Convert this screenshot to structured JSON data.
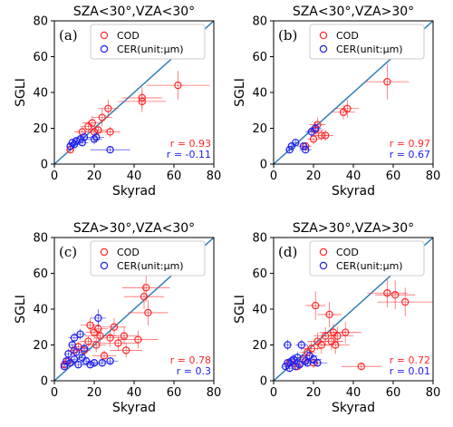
{
  "colors": {
    "cod": "#ff2a2a",
    "cer": "#2020ee",
    "oneToOne": "#2f80b8"
  },
  "chart_data": [
    {
      "type": "scatter",
      "panel_label": "(a)",
      "title": "SZA<30°,VZA<30°",
      "xlabel": "Skyrad",
      "ylabel": "SGLI",
      "xlim": [
        0,
        80
      ],
      "ylim": [
        0,
        80
      ],
      "xticks": [
        "0",
        "20",
        "40",
        "60",
        "80"
      ],
      "yticks": [
        "0",
        "20",
        "40",
        "60",
        "80"
      ],
      "grid": false,
      "legend_position": "top",
      "one_to_one_line": true,
      "series": [
        {
          "name": "COD",
          "color": "#ff2a2a",
          "points": [
            {
              "x": 8,
              "y": 8,
              "xerr": 2,
              "yerr": 2
            },
            {
              "x": 14,
              "y": 18,
              "xerr": 4,
              "yerr": 3
            },
            {
              "x": 17,
              "y": 21,
              "xerr": 4,
              "yerr": 3
            },
            {
              "x": 19,
              "y": 23,
              "xerr": 5,
              "yerr": 4
            },
            {
              "x": 20,
              "y": 18,
              "xerr": 4,
              "yerr": 3
            },
            {
              "x": 22,
              "y": 19,
              "xerr": 5,
              "yerr": 3
            },
            {
              "x": 24,
              "y": 26,
              "xerr": 5,
              "yerr": 5
            },
            {
              "x": 27,
              "y": 31,
              "xerr": 5,
              "yerr": 5
            },
            {
              "x": 28,
              "y": 18,
              "xerr": 5,
              "yerr": 3
            },
            {
              "x": 44,
              "y": 35,
              "xerr": 12,
              "yerr": 6
            },
            {
              "x": 44,
              "y": 37,
              "xerr": 10,
              "yerr": 6
            },
            {
              "x": 62,
              "y": 44,
              "xerr": 16,
              "yerr": 8
            }
          ]
        },
        {
          "name": "CER(unit:μm)",
          "color": "#2020ee",
          "points": [
            {
              "x": 8,
              "y": 10,
              "xerr": 2,
              "yerr": 2
            },
            {
              "x": 9,
              "y": 12,
              "xerr": 2,
              "yerr": 2
            },
            {
              "x": 10,
              "y": 11,
              "xerr": 3,
              "yerr": 2
            },
            {
              "x": 11,
              "y": 13,
              "xerr": 2,
              "yerr": 2
            },
            {
              "x": 13,
              "y": 14,
              "xerr": 3,
              "yerr": 3
            },
            {
              "x": 14,
              "y": 12,
              "xerr": 3,
              "yerr": 2
            },
            {
              "x": 15,
              "y": 15,
              "xerr": 3,
              "yerr": 3
            },
            {
              "x": 20,
              "y": 14,
              "xerr": 4,
              "yerr": 3
            },
            {
              "x": 21,
              "y": 15,
              "xerr": 4,
              "yerr": 3
            },
            {
              "x": 28,
              "y": 8,
              "xerr": 10,
              "yerr": 2
            }
          ]
        }
      ],
      "annotations": [
        {
          "text": "r = 0.93",
          "color": "#ff2a2a"
        },
        {
          "text": "r = -0.11",
          "color": "#2020ee"
        }
      ]
    },
    {
      "type": "scatter",
      "panel_label": "(b)",
      "title": "SZA<30°,VZA>30°",
      "xlabel": "Skyrad",
      "ylabel": "SGLI",
      "xlim": [
        0,
        80
      ],
      "ylim": [
        0,
        80
      ],
      "xticks": [
        "0",
        "20",
        "40",
        "60",
        "80"
      ],
      "yticks": [
        "0",
        "20",
        "40",
        "60",
        "80"
      ],
      "grid": false,
      "legend_position": "top",
      "one_to_one_line": true,
      "series": [
        {
          "name": "COD",
          "color": "#ff2a2a",
          "points": [
            {
              "x": 16,
              "y": 10,
              "xerr": 3,
              "yerr": 2
            },
            {
              "x": 20,
              "y": 14,
              "xerr": 3,
              "yerr": 3
            },
            {
              "x": 21,
              "y": 19,
              "xerr": 4,
              "yerr": 4
            },
            {
              "x": 22,
              "y": 22,
              "xerr": 4,
              "yerr": 4
            },
            {
              "x": 24,
              "y": 16,
              "xerr": 4,
              "yerr": 3
            },
            {
              "x": 26,
              "y": 16,
              "xerr": 4,
              "yerr": 3
            },
            {
              "x": 35,
              "y": 29,
              "xerr": 6,
              "yerr": 4
            },
            {
              "x": 37,
              "y": 31,
              "xerr": 6,
              "yerr": 5
            },
            {
              "x": 57,
              "y": 46,
              "xerr": 11,
              "yerr": 10
            }
          ]
        },
        {
          "name": "CER(unit:μm)",
          "color": "#2020ee",
          "points": [
            {
              "x": 8,
              "y": 8,
              "xerr": 2,
              "yerr": 2
            },
            {
              "x": 9,
              "y": 10,
              "xerr": 2,
              "yerr": 2
            },
            {
              "x": 11,
              "y": 12,
              "xerr": 2,
              "yerr": 2
            },
            {
              "x": 15,
              "y": 10,
              "xerr": 3,
              "yerr": 2
            },
            {
              "x": 16,
              "y": 8,
              "xerr": 3,
              "yerr": 2
            },
            {
              "x": 19,
              "y": 18,
              "xerr": 3,
              "yerr": 3
            },
            {
              "x": 21,
              "y": 20,
              "xerr": 3,
              "yerr": 3
            }
          ]
        }
      ],
      "annotations": [
        {
          "text": "r = 0.97",
          "color": "#ff2a2a"
        },
        {
          "text": "r = 0.67",
          "color": "#2020ee"
        }
      ]
    },
    {
      "type": "scatter",
      "panel_label": "(c)",
      "title": "SZA>30°,VZA<30°",
      "xlabel": "Skyrad",
      "ylabel": "SGLI",
      "xlim": [
        0,
        80
      ],
      "ylim": [
        0,
        80
      ],
      "xticks": [
        "0",
        "20",
        "40",
        "60",
        "80"
      ],
      "yticks": [
        "0",
        "20",
        "40",
        "60",
        "80"
      ],
      "grid": false,
      "legend_position": "top",
      "one_to_one_line": true,
      "series": [
        {
          "name": "COD",
          "color": "#ff2a2a",
          "points": [
            {
              "x": 5,
              "y": 9,
              "xerr": 2,
              "yerr": 2
            },
            {
              "x": 7,
              "y": 11,
              "xerr": 2,
              "yerr": 2
            },
            {
              "x": 10,
              "y": 17,
              "xerr": 3,
              "yerr": 3
            },
            {
              "x": 12,
              "y": 19,
              "xerr": 3,
              "yerr": 3
            },
            {
              "x": 15,
              "y": 17,
              "xerr": 3,
              "yerr": 3
            },
            {
              "x": 17,
              "y": 22,
              "xerr": 4,
              "yerr": 3
            },
            {
              "x": 18,
              "y": 31,
              "xerr": 5,
              "yerr": 4
            },
            {
              "x": 20,
              "y": 27,
              "xerr": 4,
              "yerr": 4
            },
            {
              "x": 21,
              "y": 20,
              "xerr": 5,
              "yerr": 4
            },
            {
              "x": 22,
              "y": 29,
              "xerr": 5,
              "yerr": 4
            },
            {
              "x": 23,
              "y": 25,
              "xerr": 8,
              "yerr": 4
            },
            {
              "x": 25,
              "y": 14,
              "xerr": 6,
              "yerr": 3
            },
            {
              "x": 28,
              "y": 24,
              "xerr": 8,
              "yerr": 5
            },
            {
              "x": 30,
              "y": 30,
              "xerr": 6,
              "yerr": 5
            },
            {
              "x": 32,
              "y": 21,
              "xerr": 10,
              "yerr": 4
            },
            {
              "x": 35,
              "y": 25,
              "xerr": 7,
              "yerr": 5
            },
            {
              "x": 36,
              "y": 17,
              "xerr": 8,
              "yerr": 4
            },
            {
              "x": 42,
              "y": 23,
              "xerr": 10,
              "yerr": 5
            },
            {
              "x": 45,
              "y": 47,
              "xerr": 10,
              "yerr": 7
            },
            {
              "x": 46,
              "y": 52,
              "xerr": 12,
              "yerr": 8
            },
            {
              "x": 47,
              "y": 38,
              "xerr": 10,
              "yerr": 7
            }
          ]
        },
        {
          "name": "CER(unit:μm)",
          "color": "#2020ee",
          "points": [
            {
              "x": 5,
              "y": 8,
              "xerr": 2,
              "yerr": 2
            },
            {
              "x": 6,
              "y": 11,
              "xerr": 2,
              "yerr": 2
            },
            {
              "x": 7,
              "y": 15,
              "xerr": 2,
              "yerr": 3
            },
            {
              "x": 8,
              "y": 10,
              "xerr": 2,
              "yerr": 2
            },
            {
              "x": 9,
              "y": 20,
              "xerr": 2,
              "yerr": 3
            },
            {
              "x": 10,
              "y": 12,
              "xerr": 2,
              "yerr": 2
            },
            {
              "x": 10,
              "y": 24,
              "xerr": 3,
              "yerr": 3
            },
            {
              "x": 11,
              "y": 16,
              "xerr": 3,
              "yerr": 3
            },
            {
              "x": 12,
              "y": 9,
              "xerr": 3,
              "yerr": 2
            },
            {
              "x": 13,
              "y": 26,
              "xerr": 3,
              "yerr": 3
            },
            {
              "x": 14,
              "y": 13,
              "xerr": 3,
              "yerr": 3
            },
            {
              "x": 15,
              "y": 18,
              "xerr": 3,
              "yerr": 3
            },
            {
              "x": 16,
              "y": 11,
              "xerr": 3,
              "yerr": 2
            },
            {
              "x": 18,
              "y": 9,
              "xerr": 4,
              "yerr": 2
            },
            {
              "x": 20,
              "y": 10,
              "xerr": 4,
              "yerr": 2
            },
            {
              "x": 22,
              "y": 35,
              "xerr": 4,
              "yerr": 5
            },
            {
              "x": 24,
              "y": 10,
              "xerr": 5,
              "yerr": 2
            },
            {
              "x": 28,
              "y": 11,
              "xerr": 4,
              "yerr": 2
            }
          ]
        }
      ],
      "annotations": [
        {
          "text": "r = 0.78",
          "color": "#ff2a2a"
        },
        {
          "text": "r = 0.3",
          "color": "#2020ee"
        }
      ]
    },
    {
      "type": "scatter",
      "panel_label": "(d)",
      "title": "SZA>30°,VZA>30°",
      "xlabel": "Skyrad",
      "ylabel": "SGLI",
      "xlim": [
        0,
        80
      ],
      "ylim": [
        0,
        80
      ],
      "xticks": [
        "0",
        "20",
        "40",
        "60",
        "80"
      ],
      "yticks": [
        "0",
        "20",
        "40",
        "60",
        "80"
      ],
      "grid": false,
      "legend_position": "top",
      "one_to_one_line": true,
      "series": [
        {
          "name": "COD",
          "color": "#ff2a2a",
          "points": [
            {
              "x": 8,
              "y": 10,
              "xerr": 2,
              "yerr": 2
            },
            {
              "x": 12,
              "y": 8,
              "xerr": 3,
              "yerr": 2
            },
            {
              "x": 15,
              "y": 12,
              "xerr": 3,
              "yerr": 3
            },
            {
              "x": 17,
              "y": 16,
              "xerr": 4,
              "yerr": 4
            },
            {
              "x": 19,
              "y": 18,
              "xerr": 5,
              "yerr": 4
            },
            {
              "x": 20,
              "y": 10,
              "xerr": 4,
              "yerr": 3
            },
            {
              "x": 21,
              "y": 42,
              "xerr": 5,
              "yerr": 8
            },
            {
              "x": 22,
              "y": 22,
              "xerr": 5,
              "yerr": 5
            },
            {
              "x": 24,
              "y": 20,
              "xerr": 6,
              "yerr": 5
            },
            {
              "x": 26,
              "y": 25,
              "xerr": 6,
              "yerr": 5
            },
            {
              "x": 28,
              "y": 37,
              "xerr": 6,
              "yerr": 7
            },
            {
              "x": 29,
              "y": 22,
              "xerr": 6,
              "yerr": 5
            },
            {
              "x": 30,
              "y": 27,
              "xerr": 7,
              "yerr": 5
            },
            {
              "x": 31,
              "y": 20,
              "xerr": 7,
              "yerr": 5
            },
            {
              "x": 32,
              "y": 25,
              "xerr": 8,
              "yerr": 5
            },
            {
              "x": 36,
              "y": 27,
              "xerr": 8,
              "yerr": 6
            },
            {
              "x": 44,
              "y": 8,
              "xerr": 10,
              "yerr": 2
            },
            {
              "x": 57,
              "y": 49,
              "xerr": 10,
              "yerr": 8
            },
            {
              "x": 61,
              "y": 48,
              "xerr": 10,
              "yerr": 8
            },
            {
              "x": 66,
              "y": 44,
              "xerr": 14,
              "yerr": 8
            }
          ]
        },
        {
          "name": "CER(unit:μm)",
          "color": "#2020ee",
          "points": [
            {
              "x": 6,
              "y": 8,
              "xerr": 2,
              "yerr": 2
            },
            {
              "x": 7,
              "y": 10,
              "xerr": 2,
              "yerr": 2
            },
            {
              "x": 7,
              "y": 20,
              "xerr": 2,
              "yerr": 3
            },
            {
              "x": 8,
              "y": 7,
              "xerr": 2,
              "yerr": 2
            },
            {
              "x": 9,
              "y": 11,
              "xerr": 2,
              "yerr": 2
            },
            {
              "x": 10,
              "y": 12,
              "xerr": 3,
              "yerr": 3
            },
            {
              "x": 11,
              "y": 8,
              "xerr": 3,
              "yerr": 2
            },
            {
              "x": 12,
              "y": 13,
              "xerr": 3,
              "yerr": 3
            },
            {
              "x": 13,
              "y": 9,
              "xerr": 3,
              "yerr": 2
            },
            {
              "x": 14,
              "y": 20,
              "xerr": 3,
              "yerr": 3
            },
            {
              "x": 16,
              "y": 11,
              "xerr": 3,
              "yerr": 3
            },
            {
              "x": 17,
              "y": 10,
              "xerr": 4,
              "yerr": 2
            },
            {
              "x": 18,
              "y": 14,
              "xerr": 4,
              "yerr": 3
            },
            {
              "x": 20,
              "y": 12,
              "xerr": 4,
              "yerr": 3
            },
            {
              "x": 22,
              "y": 10,
              "xerr": 5,
              "yerr": 2
            }
          ]
        }
      ],
      "annotations": [
        {
          "text": "r = 0.72",
          "color": "#ff2a2a"
        },
        {
          "text": "r = 0.01",
          "color": "#2020ee"
        }
      ]
    }
  ]
}
